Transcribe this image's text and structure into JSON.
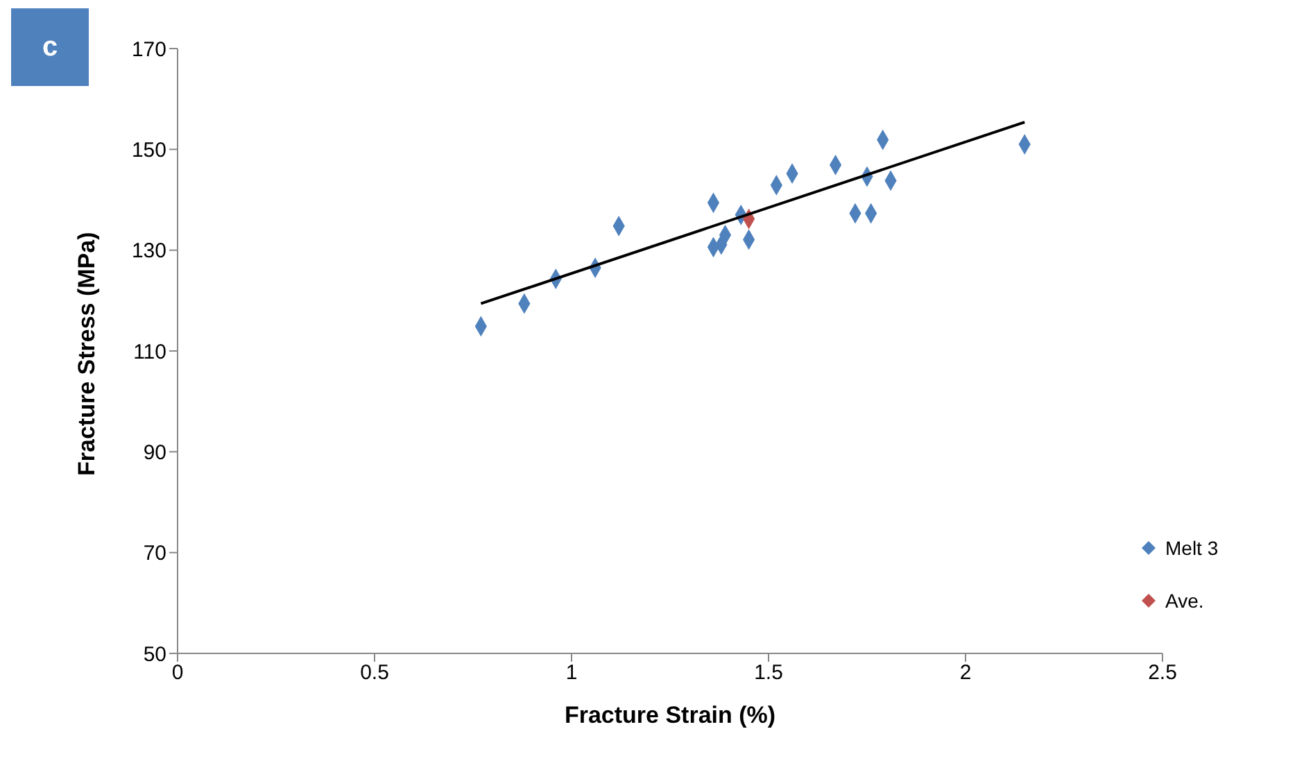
{
  "chart_data": {
    "type": "scatter",
    "xlabel": "Fracture Strain (%)",
    "ylabel": "Fracture Stress (MPa)",
    "annotations": [
      "c"
    ],
    "xlim": [
      0,
      2.5
    ],
    "xticks": [
      0,
      0.5,
      1,
      1.5,
      2,
      2.5
    ],
    "ylim": [
      50,
      170
    ],
    "yticks": [
      50,
      70,
      90,
      110,
      130,
      150,
      170
    ],
    "grid": false,
    "legend": "bottom right",
    "marker": "diamond",
    "series": [
      {
        "name": "Melt 3",
        "color": "#4f81bd",
        "x": [
          0.77,
          0.88,
          0.96,
          1.06,
          1.12,
          1.36,
          1.36,
          1.38,
          1.39,
          1.43,
          1.45,
          1.52,
          1.56,
          1.67,
          1.72,
          1.75,
          1.76,
          1.79,
          1.81,
          2.15
        ],
        "values": [
          114.9,
          119.4,
          124.3,
          126.5,
          134.8,
          139.4,
          130.6,
          131.1,
          133.0,
          137.0,
          132.1,
          142.9,
          145.2,
          146.9,
          137.3,
          144.6,
          137.3,
          151.9,
          143.8,
          151.0
        ]
      },
      {
        "name": "Ave.",
        "color": "#c0504d",
        "x": [
          1.45
        ],
        "values": [
          136.2
        ]
      },
      {
        "type": "line",
        "color": "#000000",
        "x": [
          0.77,
          2.15
        ],
        "values": [
          119.4,
          155.4
        ],
        "marker": "none"
      }
    ]
  }
}
